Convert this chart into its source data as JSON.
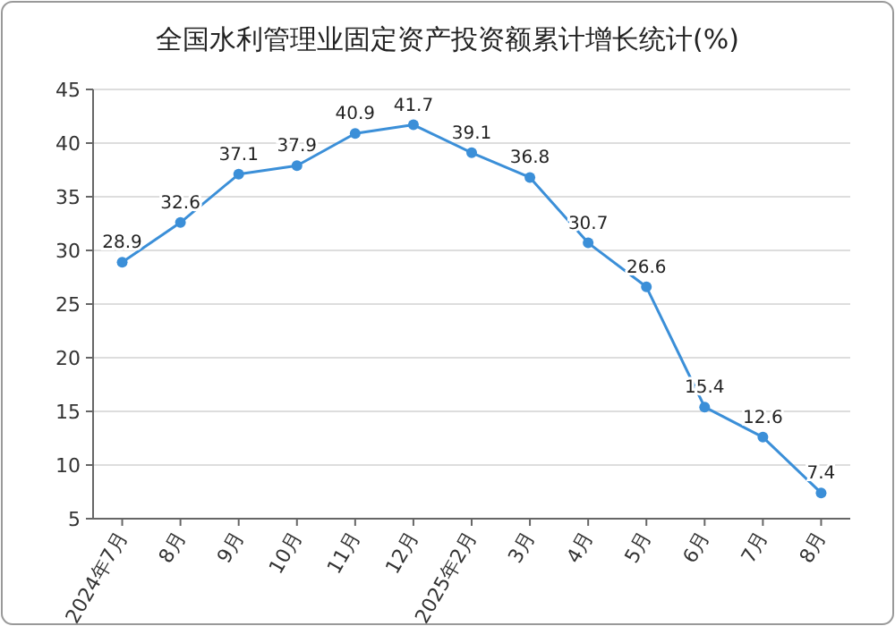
{
  "chart_data": {
    "type": "line",
    "title": "全国水利管理业固定资产投资额累计增长统计(%)",
    "categories": [
      "2024年7月",
      "8月",
      "9月",
      "10月",
      "11月",
      "12月",
      "2025年2月",
      "3月",
      "4月",
      "5月",
      "6月",
      "7月",
      "8月"
    ],
    "series": [
      {
        "color": "#3b8fd8",
        "values": [
          28.9,
          32.6,
          37.1,
          37.9,
          40.9,
          41.7,
          39.1,
          36.8,
          30.7,
          26.6,
          15.4,
          12.6,
          7.4
        ]
      }
    ],
    "ylim": [
      5,
      45
    ],
    "yticks": [
      5,
      10,
      15,
      20,
      25,
      30,
      35,
      40,
      45
    ],
    "grid": "y",
    "marker": "circle",
    "data_labels": true
  }
}
